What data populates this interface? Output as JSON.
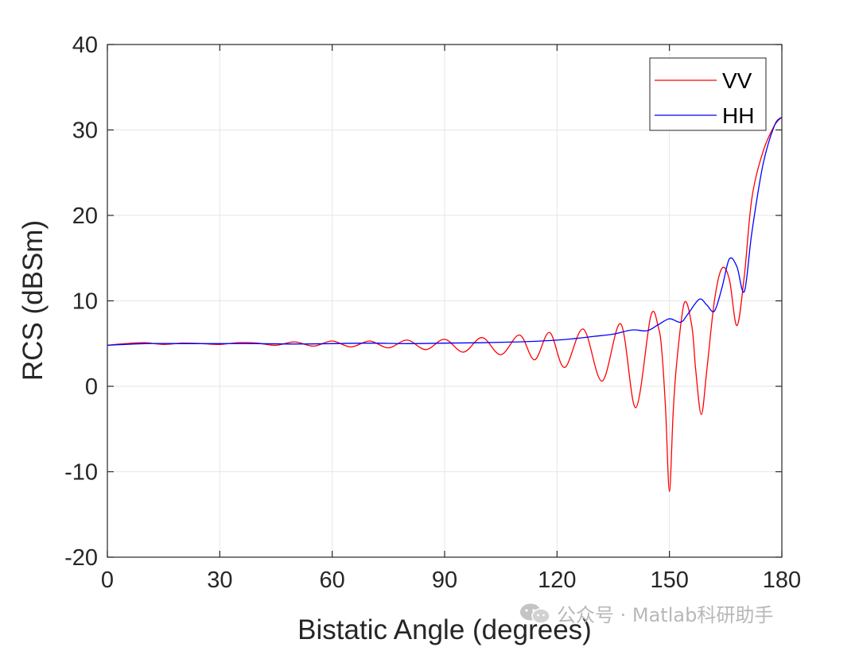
{
  "chart_data": {
    "type": "line",
    "xlabel": "Bistatic Angle (degrees)",
    "ylabel": "RCS (dBSm)",
    "xlim": [
      0,
      180
    ],
    "ylim": [
      -20,
      40
    ],
    "xticks": [
      0,
      30,
      60,
      90,
      120,
      150,
      180
    ],
    "yticks": [
      -20,
      -10,
      0,
      10,
      20,
      30,
      40
    ],
    "grid": true,
    "legend_position": "top-right",
    "series": [
      {
        "name": "VV",
        "color": "#ff0000",
        "points": [
          [
            0,
            4.8
          ],
          [
            5,
            5.0
          ],
          [
            10,
            5.1
          ],
          [
            15,
            4.9
          ],
          [
            20,
            5.05
          ],
          [
            25,
            5.0
          ],
          [
            30,
            4.9
          ],
          [
            35,
            5.1
          ],
          [
            40,
            5.05
          ],
          [
            45,
            4.8
          ],
          [
            50,
            5.2
          ],
          [
            55,
            4.7
          ],
          [
            60,
            5.3
          ],
          [
            65,
            4.6
          ],
          [
            70,
            5.3
          ],
          [
            75,
            4.5
          ],
          [
            80,
            5.4
          ],
          [
            85,
            4.3
          ],
          [
            90,
            5.5
          ],
          [
            95,
            4.0
          ],
          [
            100,
            5.7
          ],
          [
            105,
            3.7
          ],
          [
            110,
            6.0
          ],
          [
            114,
            3.1
          ],
          [
            118,
            6.3
          ],
          [
            122,
            2.2
          ],
          [
            127,
            6.7
          ],
          [
            132,
            0.6
          ],
          [
            137,
            7.3
          ],
          [
            141,
            -2.5
          ],
          [
            145,
            8.2
          ],
          [
            147,
            7.0
          ],
          [
            148,
            4.0
          ],
          [
            149,
            -3.0
          ],
          [
            150,
            -12.3
          ],
          [
            151,
            -3.0
          ],
          [
            152,
            3.0
          ],
          [
            154,
            9.8
          ],
          [
            156,
            7.0
          ],
          [
            157,
            2.0
          ],
          [
            158.5,
            -3.3
          ],
          [
            160,
            2.0
          ],
          [
            162,
            10.0
          ],
          [
            164,
            13.8
          ],
          [
            166,
            12.5
          ],
          [
            168,
            7.1
          ],
          [
            170,
            13.0
          ],
          [
            172,
            22.0
          ],
          [
            175,
            27.5
          ],
          [
            178,
            30.5
          ],
          [
            180,
            31.5
          ]
        ]
      },
      {
        "name": "HH",
        "color": "#0000ff",
        "points": [
          [
            0,
            4.8
          ],
          [
            10,
            5.0
          ],
          [
            20,
            5.0
          ],
          [
            30,
            5.0
          ],
          [
            40,
            5.0
          ],
          [
            50,
            4.95
          ],
          [
            60,
            5.0
          ],
          [
            70,
            5.05
          ],
          [
            80,
            5.0
          ],
          [
            90,
            5.05
          ],
          [
            100,
            5.1
          ],
          [
            110,
            5.2
          ],
          [
            120,
            5.4
          ],
          [
            125,
            5.6
          ],
          [
            130,
            5.85
          ],
          [
            135,
            6.1
          ],
          [
            140,
            6.6
          ],
          [
            144,
            6.5
          ],
          [
            147,
            7.2
          ],
          [
            150,
            7.9
          ],
          [
            153,
            7.5
          ],
          [
            155,
            8.5
          ],
          [
            158,
            10.2
          ],
          [
            160,
            9.5
          ],
          [
            162,
            8.8
          ],
          [
            164,
            11.5
          ],
          [
            166,
            14.9
          ],
          [
            168,
            14.0
          ],
          [
            170,
            11.1
          ],
          [
            172,
            18.0
          ],
          [
            175,
            26.0
          ],
          [
            178,
            30.5
          ],
          [
            180,
            31.5
          ]
        ]
      }
    ]
  },
  "watermark": {
    "text": "公众号 · Matlab科研助手",
    "icon": "wechat-icon"
  }
}
